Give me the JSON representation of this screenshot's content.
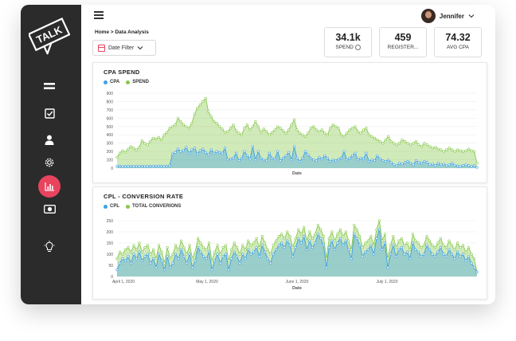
{
  "colors": {
    "blue": "#3ea0e6",
    "green": "#86c94a",
    "accent": "#e8445e",
    "sidebar": "#2b2b2b"
  },
  "logo": {
    "text": "TALK"
  },
  "sidebar": {
    "items": [
      {
        "icon": "menu-lines-icon"
      },
      {
        "icon": "checkbox-icon"
      },
      {
        "icon": "user-icon"
      },
      {
        "icon": "gear-icon"
      },
      {
        "icon": "bar-chart-icon",
        "active": true
      },
      {
        "icon": "money-icon"
      },
      {
        "icon": "lightbulb-icon"
      }
    ]
  },
  "header": {
    "user_name": "Jennifer",
    "breadcrumb": "Home > Data Analysis"
  },
  "filter": {
    "label": "Date Filter"
  },
  "stats": [
    {
      "value": "34.1k",
      "label": "SPEND"
    },
    {
      "value": "459",
      "label": "REGISTER..."
    },
    {
      "value": "74.32",
      "label": "AVG CPA"
    }
  ],
  "chart_data": [
    {
      "type": "area",
      "title": "CPA SPEND",
      "xlabel": "Date",
      "ylabel": "",
      "ylim": [
        0,
        900
      ],
      "yticks": [
        0,
        100,
        200,
        300,
        400,
        500,
        600,
        700,
        800,
        900
      ],
      "x_tick_labels": [],
      "series": [
        {
          "name": "CPA",
          "color": "#3ea0e6",
          "values": [
            20,
            25,
            18,
            22,
            20,
            24,
            20,
            22,
            20,
            25,
            22,
            20,
            24,
            22,
            26,
            25,
            22,
            20,
            24,
            30,
            170,
            190,
            230,
            200,
            210,
            250,
            180,
            220,
            240,
            170,
            210,
            230,
            190,
            160,
            220,
            180,
            200,
            190,
            180,
            240,
            100,
            110,
            120,
            180,
            90,
            120,
            200,
            150,
            110,
            260,
            100,
            200,
            120,
            100,
            90,
            180,
            120,
            110,
            200,
            90,
            120,
            150,
            190,
            100,
            260,
            120,
            80,
            120,
            200,
            160,
            120,
            100,
            90,
            130,
            110,
            150,
            120,
            80,
            100,
            90,
            110,
            120,
            200,
            100,
            120,
            150,
            180,
            100,
            120,
            110,
            180,
            80,
            100,
            90,
            150,
            110,
            90,
            80,
            100,
            70,
            40,
            30,
            60,
            50,
            70,
            80,
            60,
            40,
            90,
            70,
            60,
            80,
            70,
            40,
            50,
            30,
            60,
            40,
            50,
            30,
            40,
            60,
            35,
            25,
            20,
            30,
            40,
            30,
            20,
            30,
            10
          ]
        },
        {
          "name": "SPEND",
          "color": "#86c94a",
          "values": [
            130,
            180,
            210,
            190,
            230,
            260,
            240,
            220,
            250,
            330,
            300,
            280,
            320,
            360,
            350,
            370,
            340,
            400,
            430,
            480,
            500,
            520,
            600,
            560,
            520,
            500,
            480,
            540,
            650,
            720,
            760,
            800,
            840,
            680,
            620,
            560,
            540,
            500,
            470,
            430,
            440,
            480,
            520,
            450,
            420,
            400,
            480,
            520,
            460,
            500,
            560,
            500,
            430,
            470,
            440,
            400,
            430,
            460,
            500,
            480,
            450,
            420,
            460,
            520,
            580,
            460,
            420,
            400,
            380,
            420,
            480,
            500,
            460,
            440,
            460,
            420,
            400,
            480,
            520,
            500,
            480,
            400,
            380,
            420,
            460,
            480,
            500,
            440,
            420,
            460,
            480,
            400,
            380,
            360,
            340,
            320,
            300,
            340,
            380,
            320,
            300,
            280,
            300,
            340,
            320,
            300,
            280,
            300,
            320,
            280,
            260,
            300,
            280,
            260,
            240,
            250,
            230,
            220,
            200,
            220,
            240,
            220,
            200,
            220,
            210,
            200,
            210,
            230,
            210,
            200,
            60
          ]
        }
      ]
    },
    {
      "type": "area",
      "title": "CPL - CONVERSION RATE",
      "xlabel": "Date",
      "ylabel": "",
      "ylim": [
        0,
        250
      ],
      "yticks": [
        0,
        50,
        100,
        150,
        200,
        250
      ],
      "x_tick_labels": [
        "April 1, 2020",
        "May 1, 2020",
        "June 1, 2020",
        "July 1, 2020"
      ],
      "series": [
        {
          "name": "CPL",
          "color": "#3ea0e6",
          "values": [
            30,
            60,
            80,
            70,
            90,
            60,
            100,
            80,
            110,
            70,
            90,
            100,
            60,
            80,
            40,
            100,
            70,
            30,
            90,
            40,
            60,
            100,
            80,
            120,
            90,
            60,
            100,
            40,
            70,
            130,
            110,
            90,
            80,
            110,
            30,
            70,
            100,
            60,
            90,
            100,
            30,
            80,
            110,
            90,
            60,
            100,
            80,
            120,
            100,
            110,
            130,
            90,
            140,
            110,
            80,
            60,
            100,
            120,
            140,
            150,
            130,
            160,
            140,
            90,
            130,
            170,
            150,
            180,
            120,
            160,
            130,
            150,
            190,
            170,
            140,
            40,
            130,
            160,
            120,
            150,
            170,
            140,
            160,
            120,
            80,
            190,
            170,
            140,
            90,
            110,
            120,
            140,
            100,
            170,
            210,
            120,
            150,
            40,
            100,
            140,
            90,
            120,
            130,
            100,
            110,
            80,
            150,
            120,
            110,
            90,
            100,
            140,
            120,
            100,
            90,
            110,
            130,
            100,
            90,
            120,
            100,
            80,
            110,
            90,
            100,
            70,
            90,
            60,
            40,
            20
          ]
        },
        {
          "name": "TOTAL CONVERIONS",
          "color": "#86c94a",
          "values": [
            80,
            110,
            100,
            120,
            130,
            110,
            140,
            120,
            150,
            110,
            130,
            140,
            100,
            120,
            80,
            140,
            110,
            60,
            130,
            80,
            100,
            140,
            120,
            160,
            130,
            100,
            140,
            80,
            110,
            170,
            150,
            130,
            120,
            150,
            70,
            110,
            140,
            100,
            130,
            140,
            70,
            120,
            150,
            130,
            100,
            140,
            120,
            160,
            140,
            150,
            170,
            130,
            180,
            150,
            120,
            100,
            140,
            160,
            180,
            190,
            170,
            200,
            180,
            130,
            170,
            210,
            190,
            220,
            160,
            200,
            170,
            190,
            230,
            210,
            180,
            80,
            170,
            200,
            160,
            190,
            210,
            180,
            200,
            160,
            120,
            230,
            210,
            180,
            130,
            150,
            160,
            180,
            140,
            210,
            250,
            160,
            190,
            80,
            140,
            180,
            130,
            160,
            170,
            140,
            150,
            120,
            190,
            160,
            150,
            130,
            140,
            180,
            160,
            140,
            130,
            150,
            170,
            140,
            130,
            160,
            140,
            120,
            150,
            130,
            140,
            110,
            130,
            100,
            80,
            20
          ]
        }
      ]
    }
  ]
}
